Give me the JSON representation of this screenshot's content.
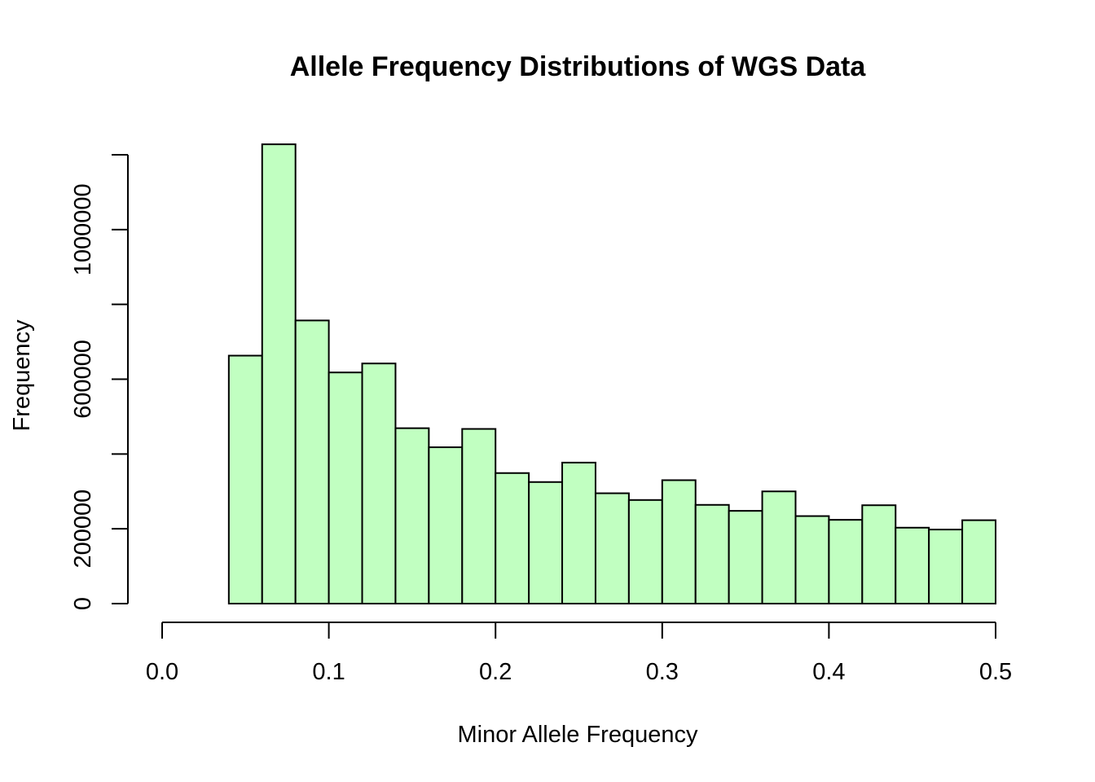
{
  "chart_data": {
    "type": "bar",
    "title": "Allele Frequency Distributions of WGS Data",
    "xlabel": "Minor Allele Frequency",
    "ylabel": "Frequency",
    "bar_color": "#C1FFC1",
    "edge_color": "#000000",
    "xlim": [
      0,
      0.5
    ],
    "ylim": [
      0,
      1200000
    ],
    "x_ticks": [
      0.0,
      0.1,
      0.2,
      0.3,
      0.4,
      0.5
    ],
    "x_tick_labels": [
      "0.0",
      "0.1",
      "0.2",
      "0.3",
      "0.4",
      "0.5"
    ],
    "y_ticks": [
      0,
      200000,
      400000,
      600000,
      800000,
      1000000,
      1200000
    ],
    "y_tick_labels": [
      "0",
      "200000",
      "",
      "600000",
      "",
      "1000000",
      ""
    ],
    "bins": [
      {
        "start": 0.04,
        "end": 0.06,
        "count": 663000
      },
      {
        "start": 0.06,
        "end": 0.08,
        "count": 1228000
      },
      {
        "start": 0.08,
        "end": 0.1,
        "count": 757000
      },
      {
        "start": 0.1,
        "end": 0.12,
        "count": 618000
      },
      {
        "start": 0.12,
        "end": 0.14,
        "count": 642000
      },
      {
        "start": 0.14,
        "end": 0.16,
        "count": 469000
      },
      {
        "start": 0.16,
        "end": 0.18,
        "count": 418000
      },
      {
        "start": 0.18,
        "end": 0.2,
        "count": 467000
      },
      {
        "start": 0.2,
        "end": 0.22,
        "count": 349000
      },
      {
        "start": 0.22,
        "end": 0.24,
        "count": 325000
      },
      {
        "start": 0.24,
        "end": 0.26,
        "count": 377000
      },
      {
        "start": 0.26,
        "end": 0.28,
        "count": 295000
      },
      {
        "start": 0.28,
        "end": 0.3,
        "count": 277000
      },
      {
        "start": 0.3,
        "end": 0.32,
        "count": 330000
      },
      {
        "start": 0.32,
        "end": 0.34,
        "count": 264000
      },
      {
        "start": 0.34,
        "end": 0.36,
        "count": 248000
      },
      {
        "start": 0.36,
        "end": 0.38,
        "count": 300000
      },
      {
        "start": 0.38,
        "end": 0.4,
        "count": 234000
      },
      {
        "start": 0.4,
        "end": 0.42,
        "count": 224000
      },
      {
        "start": 0.42,
        "end": 0.44,
        "count": 263000
      },
      {
        "start": 0.44,
        "end": 0.46,
        "count": 203000
      },
      {
        "start": 0.46,
        "end": 0.48,
        "count": 198000
      },
      {
        "start": 0.48,
        "end": 0.5,
        "count": 223000
      }
    ]
  }
}
